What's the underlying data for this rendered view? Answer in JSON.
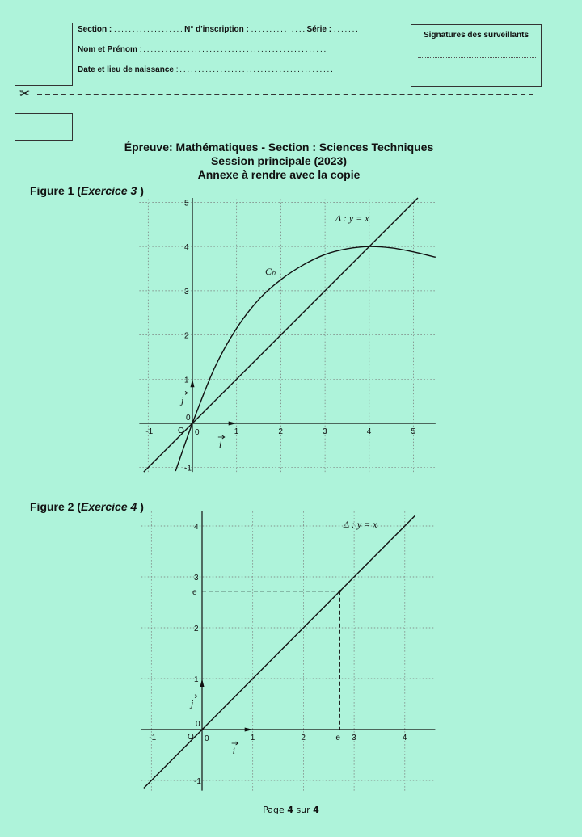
{
  "header": {
    "section_label": "Section :",
    "section_dots": ". . . . . . . . . . . . . . . . . . .",
    "inscription_label": "N° d'inscription :",
    "inscription_dots": ". . . . . . . . . . . . . . .",
    "serie_label": "Série :",
    "serie_dots": ". . . . . . .",
    "nom_label": "Nom et Prénom",
    "nom_dots": ": . . . . . . . . . . . . . . . . . . . . . . . . . . . . . . . . . . . . . . . . . . . . . . . . . .",
    "naissance_label": "Date et lieu de naissance",
    "naissance_dots": ": . . . . . . . . . . . . . . . . . . . . . . . . . . . . . . . . . . . . . . . . . .",
    "signatures_title": "Signatures des surveillants",
    "scissors": "✂"
  },
  "title": {
    "line1": "Épreuve: Mathématiques - Section : Sciences  Techniques",
    "line2": "Session principale (2023)",
    "line3": "Annexe  à rendre avec la copie"
  },
  "figure1": {
    "label_prefix": "Figure 1 (",
    "label_italic": "Exercice 3",
    "label_suffix": " )"
  },
  "figure2": {
    "label_prefix": "Figure 2 (",
    "label_italic": "Exercice 4",
    "label_suffix": " )"
  },
  "footer": {
    "page_prefix": "Page ",
    "page_num": "4",
    "page_mid": " sur ",
    "page_total": "4"
  },
  "chart_data": [
    {
      "type": "line",
      "xlim": [
        -1.2,
        5.5
      ],
      "ylim": [
        -1.1,
        5.1
      ],
      "grid": true,
      "xticks": [
        -1,
        0,
        1,
        2,
        3,
        4,
        5
      ],
      "yticks": [
        -1,
        0,
        1,
        2,
        3,
        4,
        5
      ],
      "origin_label": "O",
      "vector_i": "i",
      "vector_j": "j",
      "series": [
        {
          "name": "Δ : y = x",
          "x": [
            -1.1,
            5.1
          ],
          "y": [
            -1.1,
            5.1
          ]
        },
        {
          "name": "Cₕ",
          "x": [
            -0.38,
            0,
            0.5,
            1,
            1.5,
            2,
            2.5,
            3,
            3.5,
            4,
            4.5,
            5,
            5.5
          ],
          "y": [
            -1.08,
            0,
            1.25,
            2.15,
            2.8,
            3.25,
            3.58,
            3.82,
            3.95,
            4.0,
            3.97,
            3.88,
            3.76
          ]
        }
      ]
    },
    {
      "type": "line",
      "xlim": [
        -1.2,
        4.6
      ],
      "ylim": [
        -1.2,
        4.3
      ],
      "grid": true,
      "xticks": [
        -1,
        0,
        1,
        2,
        3,
        4
      ],
      "yticks": [
        -1,
        0,
        1,
        2,
        3,
        4
      ],
      "origin_label": "O",
      "vector_i": "i",
      "vector_j": "j",
      "special_tick": {
        "label": "e",
        "value": 2.718
      },
      "series": [
        {
          "name": "Δ : y = x",
          "x": [
            -1.15,
            4.2
          ],
          "y": [
            -1.15,
            4.2
          ]
        }
      ]
    }
  ]
}
